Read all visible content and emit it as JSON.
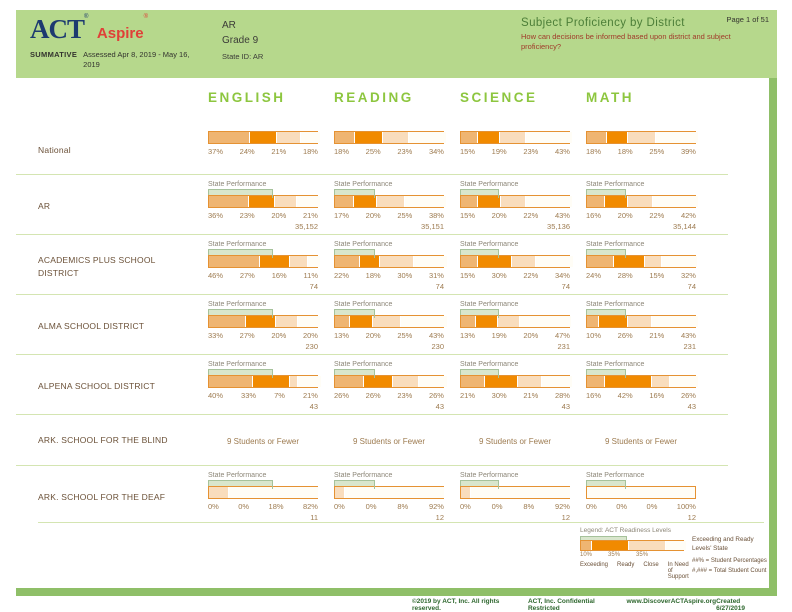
{
  "header": {
    "logo_act": "ACT",
    "logo_act_reg": "®",
    "logo_aspire": "Aspire",
    "logo_aspire_reg": "®",
    "summative": "SUMMATIVE",
    "assessed": "Assessed Apr 8, 2019 - May 16, 2019",
    "state": "AR",
    "grade": "Grade 9",
    "state_id": "State ID: AR",
    "title": "Subject Proficiency by District",
    "question": "How can decisions be informed based upon district and subject proficiency?",
    "page": "Page 1 of 51"
  },
  "labels": {
    "state_performance": "State Performance"
  },
  "colors": {
    "segments": [
      "#efb572",
      "#f18a00",
      "#f9ddbd",
      "#fffdf6"
    ],
    "bar_border": "#e59233",
    "state_band": "#d9e6cc",
    "header_band": "#b6d88c",
    "subject_green": "#8dc63f"
  },
  "subjects": [
    {
      "name": "ENGLISH",
      "state_performance_pct": 59
    },
    {
      "name": "READING",
      "state_performance_pct": 37
    },
    {
      "name": "SCIENCE",
      "state_performance_pct": 35
    },
    {
      "name": "MATH",
      "state_performance_pct": 36
    }
  ],
  "rows": [
    {
      "label": "National",
      "type": "bars",
      "show_state_performance": false,
      "cells": [
        {
          "values": [
            37,
            24,
            21,
            18
          ]
        },
        {
          "values": [
            18,
            25,
            23,
            34
          ]
        },
        {
          "values": [
            15,
            19,
            23,
            43
          ]
        },
        {
          "values": [
            18,
            18,
            25,
            39
          ]
        }
      ]
    },
    {
      "label": "AR",
      "type": "bars",
      "show_state_performance": true,
      "cells": [
        {
          "values": [
            36,
            23,
            20,
            21
          ],
          "count": "35,152"
        },
        {
          "values": [
            17,
            20,
            25,
            38
          ],
          "count": "35,151"
        },
        {
          "values": [
            15,
            20,
            22,
            43
          ],
          "count": "35,136"
        },
        {
          "values": [
            16,
            20,
            22,
            42
          ],
          "count": "35,144"
        }
      ]
    },
    {
      "label": "ACADEMICS PLUS SCHOOL DISTRICT",
      "type": "bars",
      "show_state_performance": true,
      "cells": [
        {
          "values": [
            46,
            27,
            16,
            11
          ],
          "count": "74"
        },
        {
          "values": [
            22,
            18,
            30,
            31
          ],
          "count": "74"
        },
        {
          "values": [
            15,
            30,
            22,
            34
          ],
          "count": "74"
        },
        {
          "values": [
            24,
            28,
            15,
            32
          ],
          "count": "74"
        }
      ]
    },
    {
      "label": "ALMA SCHOOL DISTRICT",
      "type": "bars",
      "show_state_performance": true,
      "cells": [
        {
          "values": [
            33,
            27,
            20,
            20
          ],
          "count": "230"
        },
        {
          "values": [
            13,
            20,
            25,
            43
          ],
          "count": "230"
        },
        {
          "values": [
            13,
            19,
            20,
            47
          ],
          "count": "231"
        },
        {
          "values": [
            10,
            26,
            21,
            43
          ],
          "count": "231"
        }
      ]
    },
    {
      "label": "ALPENA SCHOOL DISTRICT",
      "type": "bars",
      "show_state_performance": true,
      "cells": [
        {
          "values": [
            40,
            33,
            7,
            21
          ],
          "count": "43"
        },
        {
          "values": [
            26,
            26,
            23,
            26
          ],
          "count": "43"
        },
        {
          "values": [
            21,
            30,
            21,
            28
          ],
          "count": "43"
        },
        {
          "values": [
            16,
            42,
            16,
            26
          ],
          "count": "43"
        }
      ]
    },
    {
      "label": "ARK. SCHOOL FOR THE BLIND",
      "type": "text",
      "message": "9 Students or Fewer"
    },
    {
      "label": "ARK. SCHOOL FOR THE DEAF",
      "type": "bars",
      "show_state_performance": true,
      "cells": [
        {
          "values": [
            0,
            0,
            18,
            82
          ],
          "count": "11"
        },
        {
          "values": [
            0,
            0,
            8,
            92
          ],
          "count": "12"
        },
        {
          "values": [
            0,
            0,
            8,
            92
          ],
          "count": "12"
        },
        {
          "values": [
            0,
            0,
            0,
            100
          ],
          "count": "12"
        }
      ]
    }
  ],
  "legend": {
    "title": "Legend: ACT Readiness Levels",
    "bar_values": [
      10,
      35,
      35,
      20
    ],
    "tick_labels": [
      "10%",
      "35%",
      "35%"
    ],
    "levels": [
      "Exceeding",
      "Ready",
      "Close",
      "In Need of Support"
    ],
    "state_note": "Exceeding and Ready Levels' State",
    "pct_note": "##% = Student Percentages",
    "count_note": "#,### = Total Student Count"
  },
  "footer": {
    "copyright": "©2019 by ACT, Inc. All rights reserved.",
    "confidential": "ACT, Inc. Confidential Restricted",
    "url": "www.DiscoverACTAspire.org",
    "created": "Created 6/27/2019"
  }
}
